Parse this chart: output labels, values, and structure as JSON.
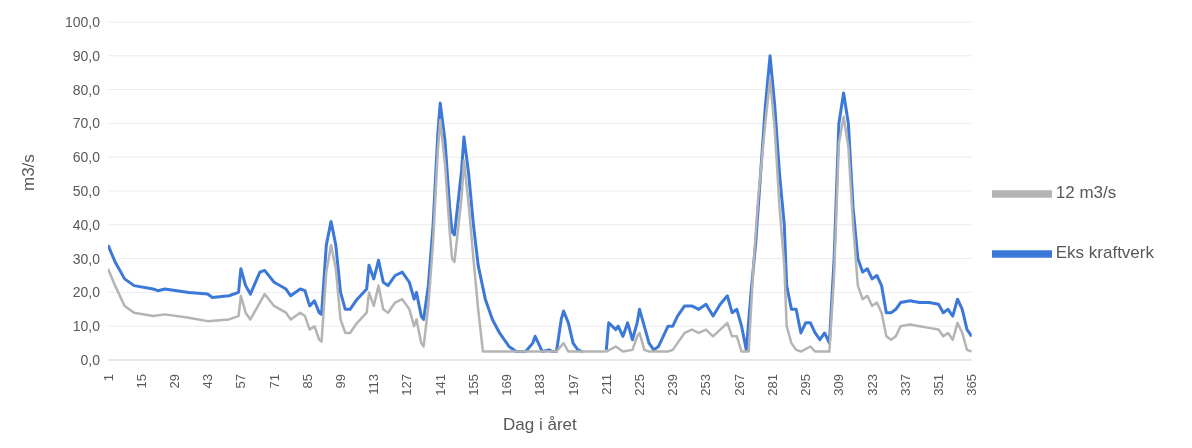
{
  "chart_data": {
    "type": "line",
    "xlabel": "Dag i året",
    "ylabel": "m3/s",
    "xlim": [
      1,
      365
    ],
    "xticks": [
      1,
      15,
      29,
      43,
      57,
      71,
      85,
      99,
      113,
      127,
      141,
      155,
      169,
      183,
      197,
      211,
      225,
      239,
      253,
      267,
      281,
      295,
      309,
      323,
      337,
      351,
      365
    ],
    "ylim": [
      0,
      100
    ],
    "yticks": [
      {
        "value": 0,
        "label": "0,0"
      },
      {
        "value": 10,
        "label": "10,0"
      },
      {
        "value": 20,
        "label": "20,0"
      },
      {
        "value": 30,
        "label": "30,0"
      },
      {
        "value": 40,
        "label": "40,0"
      },
      {
        "value": 50,
        "label": "50,0"
      },
      {
        "value": 60,
        "label": "60,0"
      },
      {
        "value": 70,
        "label": "70,0"
      },
      {
        "value": 80,
        "label": "80,0"
      },
      {
        "value": 90,
        "label": "90,0"
      },
      {
        "value": 100,
        "label": "100,0"
      }
    ],
    "grid": "y",
    "legend": "right",
    "marker": "none",
    "line_style": "solid",
    "series": [
      {
        "name": "Eks kraftverk",
        "color": "#3c78d8",
        "x": [
          1,
          4,
          8,
          12,
          20,
          22,
          25,
          35,
          43,
          45,
          52,
          56,
          57,
          59,
          61,
          65,
          67,
          71,
          76,
          78,
          82,
          84,
          86,
          88,
          90,
          91,
          93,
          95,
          97,
          99,
          101,
          103,
          106,
          110,
          111,
          113,
          115,
          117,
          119,
          122,
          125,
          128,
          130,
          131,
          133,
          134,
          136,
          138,
          140,
          141,
          143,
          145,
          146,
          147,
          150,
          151,
          153,
          155,
          157,
          160,
          163,
          166,
          170,
          173,
          177,
          180,
          181,
          183,
          184,
          187,
          188,
          190,
          192,
          193,
          195,
          197,
          199,
          201,
          205,
          211,
          212,
          215,
          216,
          218,
          220,
          222,
          224,
          225,
          227,
          229,
          231,
          233,
          235,
          237,
          239,
          241,
          244,
          247,
          250,
          253,
          256,
          259,
          262,
          264,
          266,
          268,
          270,
          272,
          274,
          276,
          278,
          280,
          282,
          284,
          286,
          287,
          289,
          291,
          293,
          295,
          297,
          299,
          301,
          303,
          305,
          307,
          309,
          311,
          313,
          315,
          317,
          319,
          321,
          323,
          325,
          327,
          329,
          331,
          333,
          335,
          339,
          343,
          347,
          351,
          353,
          355,
          357,
          359,
          361,
          363,
          365
        ],
        "values": [
          34,
          29,
          24,
          22,
          21,
          20.5,
          21,
          20,
          19.5,
          18.5,
          19,
          20,
          27,
          22,
          19.5,
          26,
          26.5,
          23,
          21,
          19,
          21,
          20.5,
          16,
          17.5,
          14,
          13.5,
          34,
          41,
          34,
          20,
          15,
          15,
          18,
          21,
          28,
          24,
          29.5,
          23,
          22,
          25,
          26,
          23,
          18,
          20,
          13,
          12,
          22,
          40,
          67,
          76,
          65,
          45,
          38,
          37,
          56,
          66,
          55,
          40,
          28,
          18,
          12,
          8,
          4,
          2.5,
          2.5,
          5,
          7,
          4,
          2.5,
          3,
          2.5,
          2.5,
          12,
          14.5,
          11,
          5,
          3,
          2.5,
          null,
          3,
          11,
          9,
          10,
          7,
          11,
          6,
          11,
          15,
          10,
          5,
          3,
          4,
          7,
          10,
          10,
          13,
          16,
          16,
          15,
          16.5,
          13,
          16.5,
          19,
          14,
          15,
          10,
          3,
          20,
          35,
          55,
          75,
          90,
          75,
          55,
          40,
          22,
          15,
          15,
          8,
          11,
          11,
          8,
          6,
          8,
          5,
          30,
          70,
          79,
          70,
          45,
          30,
          26,
          27,
          24,
          25,
          22,
          14,
          14,
          15,
          17,
          17.5,
          17,
          17,
          16.5,
          14,
          15,
          13,
          18,
          15,
          9,
          7
        ]
      },
      {
        "name": "12 m3/s",
        "color": "#b4b4b4",
        "x": [
          1,
          4,
          8,
          12,
          20,
          25,
          35,
          43,
          52,
          56,
          57,
          59,
          61,
          65,
          67,
          71,
          76,
          78,
          82,
          84,
          86,
          88,
          90,
          91,
          93,
          95,
          97,
          99,
          101,
          103,
          106,
          110,
          111,
          113,
          115,
          117,
          119,
          122,
          125,
          128,
          130,
          131,
          133,
          134,
          136,
          138,
          140,
          141,
          143,
          145,
          146,
          147,
          150,
          151,
          153,
          155,
          157,
          159,
          190,
          193,
          195,
          211,
          215,
          218,
          222,
          224,
          225,
          227,
          229,
          237,
          239,
          241,
          244,
          247,
          250,
          253,
          256,
          259,
          262,
          264,
          266,
          268,
          271,
          273,
          275,
          278,
          280,
          282,
          284,
          286,
          287,
          289,
          291,
          293,
          297,
          299,
          305,
          307,
          309,
          311,
          313,
          315,
          317,
          319,
          321,
          323,
          325,
          327,
          329,
          331,
          333,
          335,
          339,
          343,
          347,
          351,
          353,
          355,
          357,
          359,
          361,
          363,
          365
        ],
        "values": [
          27,
          22,
          16,
          14,
          13,
          13.5,
          12.5,
          11.5,
          12,
          13,
          19,
          14,
          12,
          17,
          19.5,
          16,
          14,
          12,
          14,
          13,
          9,
          10,
          6,
          5.5,
          26,
          34,
          27,
          12,
          8,
          8,
          11,
          14,
          20,
          16,
          22,
          15,
          14,
          17,
          18,
          15,
          10,
          12,
          5,
          4,
          16,
          35,
          62,
          71,
          58,
          38,
          30,
          29,
          48,
          59,
          46,
          30,
          15,
          2.5,
          2.5,
          5,
          2.5,
          2.5,
          4,
          2.5,
          3,
          7,
          8,
          3,
          2.5,
          2.5,
          3,
          5,
          8,
          9,
          8,
          9,
          7,
          9,
          11,
          7,
          7,
          2.5,
          2.5,
          28,
          48,
          70,
          83,
          68,
          45,
          28,
          10,
          5,
          3,
          2.5,
          4,
          2.5,
          2.5,
          25,
          64,
          72,
          63,
          40,
          22,
          18,
          19,
          16,
          17,
          14,
          7,
          6,
          7,
          10,
          10.5,
          10,
          9.5,
          9,
          7,
          8,
          6,
          11,
          8,
          3,
          2.5
        ]
      }
    ]
  }
}
